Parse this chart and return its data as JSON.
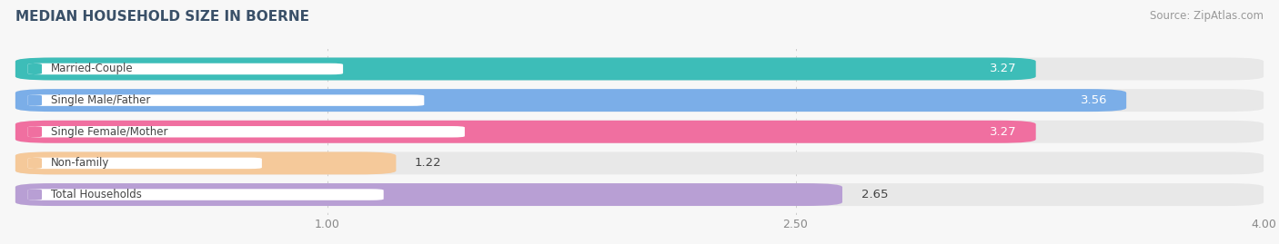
{
  "title": "MEDIAN HOUSEHOLD SIZE IN BOERNE",
  "source": "Source: ZipAtlas.com",
  "categories": [
    "Married-Couple",
    "Single Male/Father",
    "Single Female/Mother",
    "Non-family",
    "Total Households"
  ],
  "values": [
    3.27,
    3.56,
    3.27,
    1.22,
    2.65
  ],
  "bar_colors": [
    "#3dbdb8",
    "#7baee8",
    "#f06fa0",
    "#f5c99a",
    "#b89fd4"
  ],
  "xlim": [
    0,
    4.0
  ],
  "xticks": [
    1.0,
    2.5,
    4.0
  ],
  "value_label_inside": [
    true,
    true,
    true,
    false,
    false
  ],
  "background_color": "#f7f7f7",
  "bar_bg_color": "#e8e8e8",
  "inter_bar_color": "#ffffff",
  "title_color": "#3a5068",
  "source_color": "#999999",
  "label_text_color": "#444444"
}
